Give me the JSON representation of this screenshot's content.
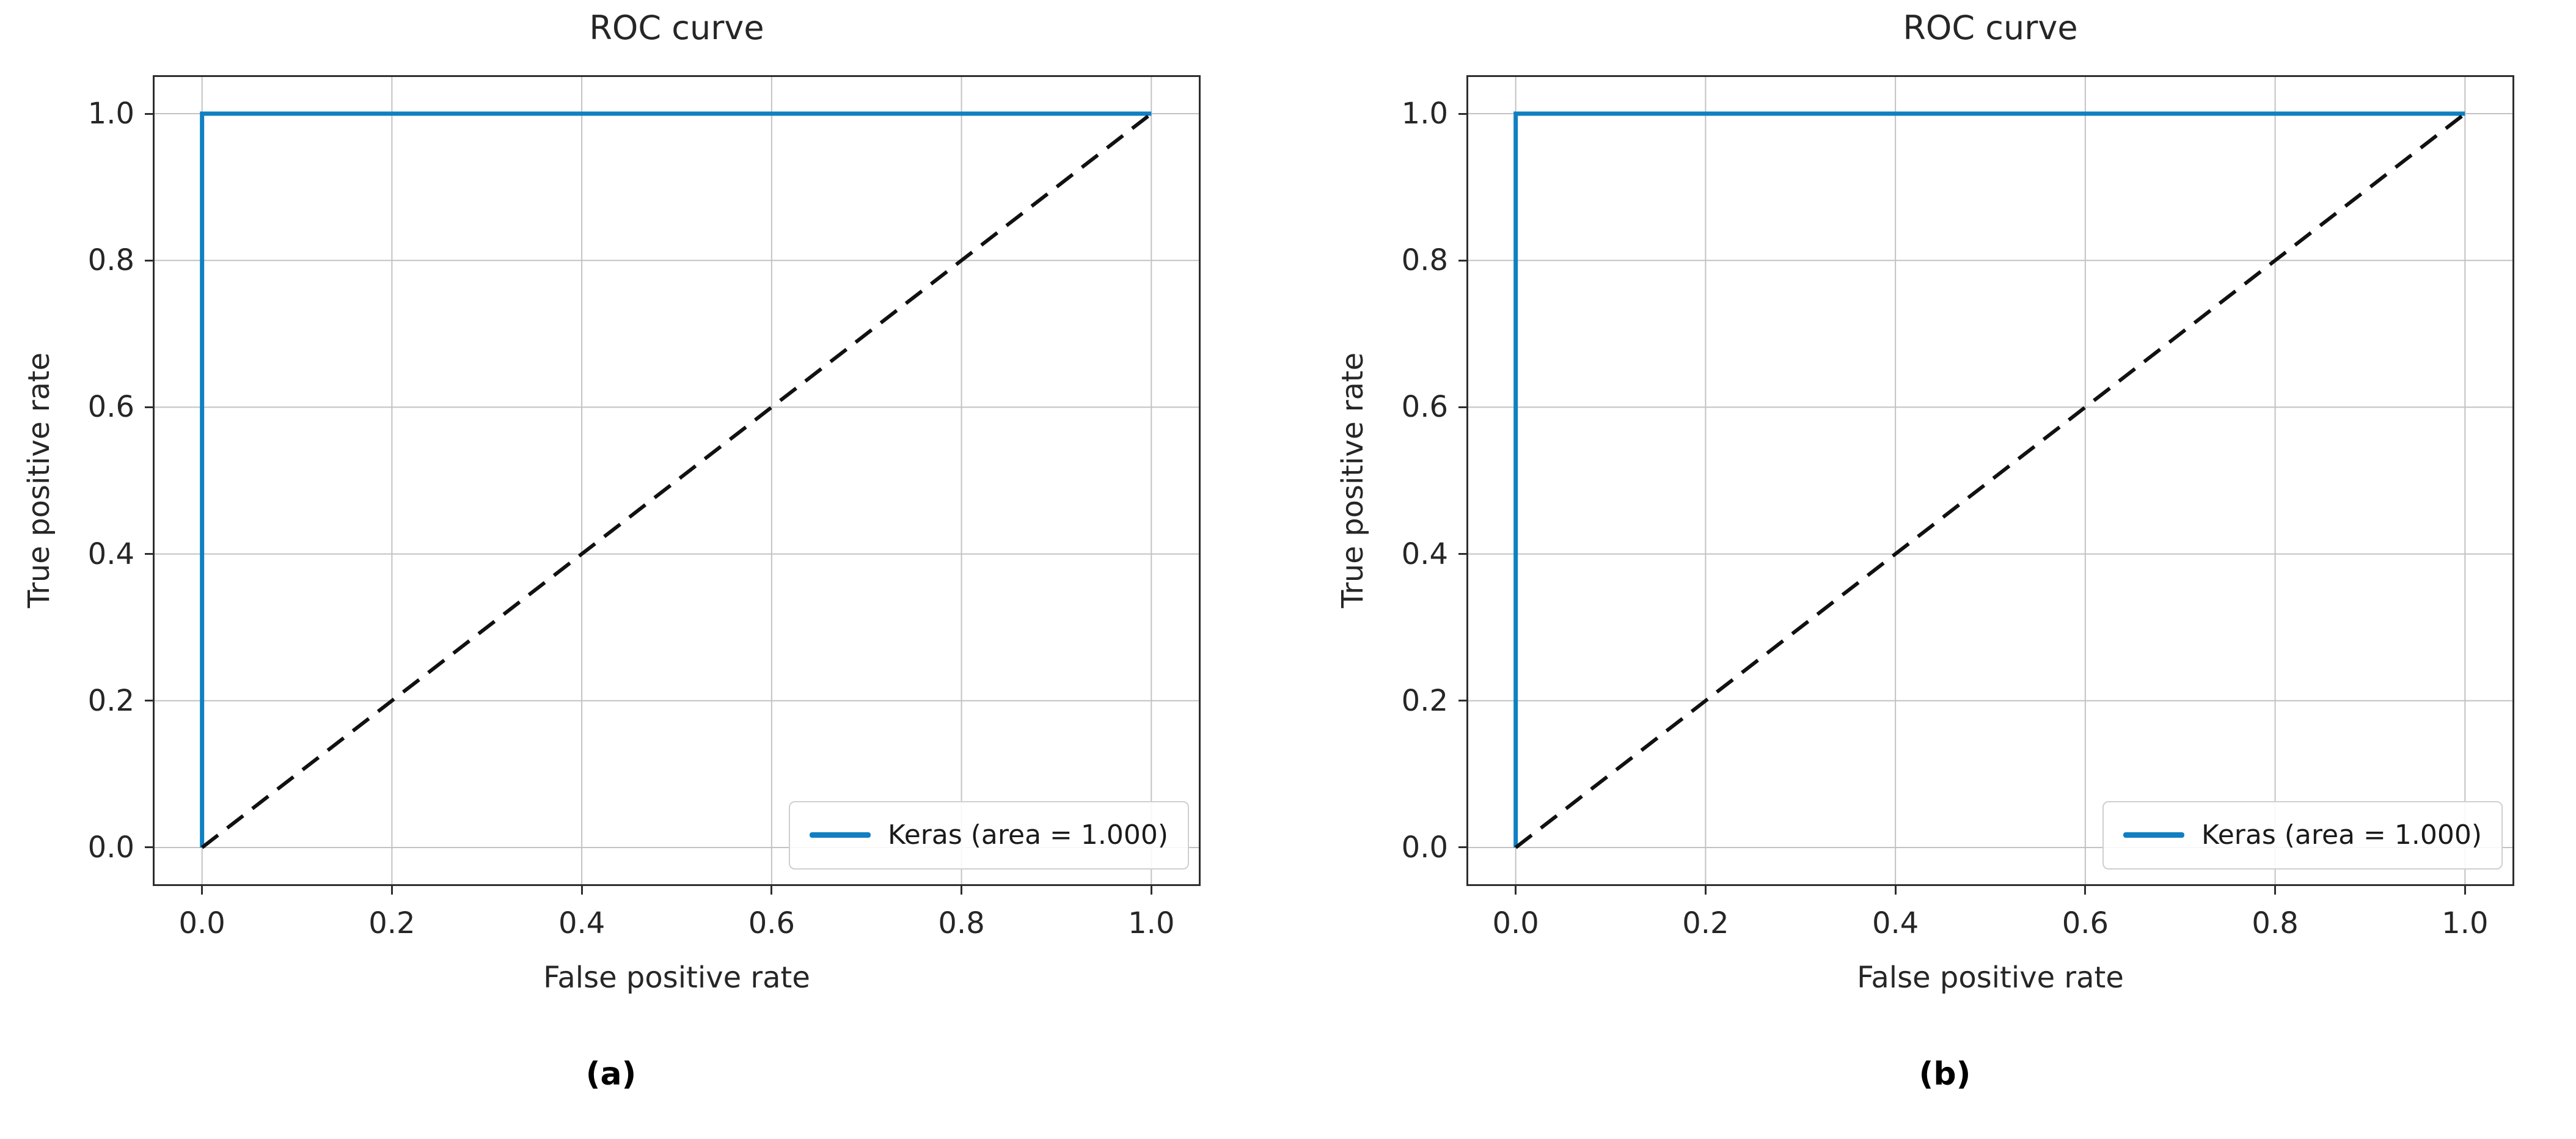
{
  "page": {
    "background": "#ffffff"
  },
  "colors": {
    "roc_line": "#1080c2",
    "diagonal": "#111111",
    "grid": "#c2c2c2",
    "spine": "#2e2e2e",
    "text": "#262626",
    "legend_border": "#cfcfcf"
  },
  "chart_data": [
    {
      "type": "line",
      "title": "ROC curve",
      "xlabel": "False positive rate",
      "ylabel": "True positive rate",
      "sublabel": "(a)",
      "xlim": [
        -0.05,
        1.05
      ],
      "ylim": [
        -0.05,
        1.05
      ],
      "xticks": [
        0.0,
        0.2,
        0.4,
        0.6,
        0.8,
        1.0
      ],
      "yticks": [
        0.0,
        0.2,
        0.4,
        0.6,
        0.8,
        1.0
      ],
      "xtick_labels": [
        "0.0",
        "0.2",
        "0.4",
        "0.6",
        "0.8",
        "1.0"
      ],
      "ytick_labels": [
        "0.0",
        "0.2",
        "0.4",
        "0.6",
        "0.8",
        "1.0"
      ],
      "grid": true,
      "legend": {
        "position": "lower right",
        "entries": [
          {
            "label": "Keras (area = 1.000)",
            "color": "#1080c2",
            "linestyle": "solid"
          }
        ]
      },
      "series": [
        {
          "name": "roc-curve",
          "legend_label": "Keras (area = 1.000)",
          "color": "#1080c2",
          "linestyle": "solid",
          "linewidth": 7,
          "points": {
            "x": [
              0,
              0,
              1
            ],
            "y": [
              0,
              1,
              1
            ]
          }
        },
        {
          "name": "chance-diagonal",
          "color": "#111111",
          "linestyle": "dashed",
          "linewidth": 6,
          "points": {
            "x": [
              0,
              1
            ],
            "y": [
              0,
              1
            ]
          }
        }
      ]
    },
    {
      "type": "line",
      "title": "ROC curve",
      "xlabel": "False positive rate",
      "ylabel": "True positive rate",
      "sublabel": "(b)",
      "xlim": [
        -0.05,
        1.05
      ],
      "ylim": [
        -0.05,
        1.05
      ],
      "xticks": [
        0.0,
        0.2,
        0.4,
        0.6,
        0.8,
        1.0
      ],
      "yticks": [
        0.0,
        0.2,
        0.4,
        0.6,
        0.8,
        1.0
      ],
      "xtick_labels": [
        "0.0",
        "0.2",
        "0.4",
        "0.6",
        "0.8",
        "1.0"
      ],
      "ytick_labels": [
        "0.0",
        "0.2",
        "0.4",
        "0.6",
        "0.8",
        "1.0"
      ],
      "grid": true,
      "legend": {
        "position": "lower right",
        "entries": [
          {
            "label": "Keras (area = 1.000)",
            "color": "#1080c2",
            "linestyle": "solid"
          }
        ]
      },
      "series": [
        {
          "name": "roc-curve",
          "legend_label": "Keras (area = 1.000)",
          "color": "#1080c2",
          "linestyle": "solid",
          "linewidth": 7,
          "points": {
            "x": [
              0,
              0,
              1
            ],
            "y": [
              0,
              1,
              1
            ]
          }
        },
        {
          "name": "chance-diagonal",
          "color": "#111111",
          "linestyle": "dashed",
          "linewidth": 6,
          "points": {
            "x": [
              0,
              1
            ],
            "y": [
              0,
              1
            ]
          }
        }
      ]
    }
  ]
}
